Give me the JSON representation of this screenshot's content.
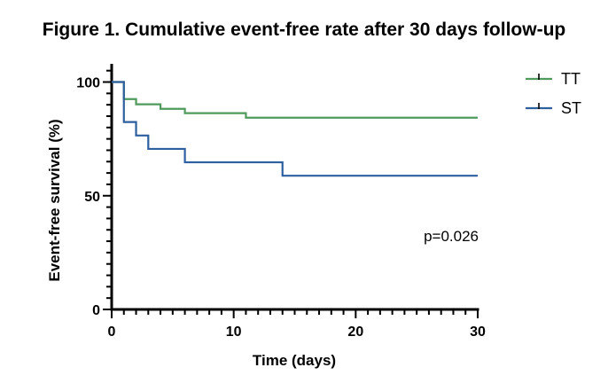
{
  "chart_data": {
    "type": "line",
    "step": true,
    "title": "Figure 1.  Cumulative event-free rate after 30 days follow-up",
    "xlabel": "Time (days)",
    "ylabel": "Event-free survival (%)",
    "xlim": [
      0,
      30
    ],
    "ylim": [
      0,
      108
    ],
    "x_ticks": [
      0,
      10,
      20,
      30
    ],
    "y_ticks": [
      0,
      50,
      100
    ],
    "x_minor_step": 1,
    "y_minor_step": 5,
    "grid": false,
    "legend": "top-right",
    "annotation": "p=0.026",
    "series": [
      {
        "name": "TT",
        "color": "#4f9a5c",
        "points": [
          [
            0,
            100
          ],
          [
            1,
            92.5
          ],
          [
            2,
            90.2
          ],
          [
            4,
            88.2
          ],
          [
            6,
            86.3
          ],
          [
            11,
            84.3
          ],
          [
            30,
            84.3
          ]
        ]
      },
      {
        "name": "ST",
        "color": "#2e5f9e",
        "points": [
          [
            0,
            100
          ],
          [
            1,
            82.4
          ],
          [
            2,
            76.5
          ],
          [
            3,
            70.6
          ],
          [
            6,
            64.7
          ],
          [
            14,
            58.8
          ],
          [
            30,
            58.8
          ]
        ]
      }
    ]
  }
}
